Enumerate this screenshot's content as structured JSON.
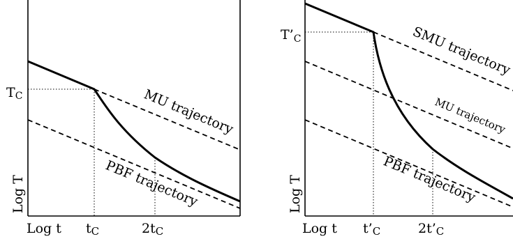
{
  "left_panel": {
    "y_axis_label": "Log T",
    "x_axis_label": "Log t",
    "tick_tc": "t",
    "tick_tc_sub": "C",
    "tick_2tc": "2t",
    "tick_2tc_sub": "C",
    "level_T": "T",
    "level_T_sub": "C",
    "mu_label": "MU trajectory",
    "pbf_label": "PBF trajectory"
  },
  "right_panel": {
    "y_axis_label": "Log T",
    "x_axis_label": "Log t",
    "tick_tc": "t’",
    "tick_tc_sub": "C",
    "tick_2tc": "2t’",
    "tick_2tc_sub": "C",
    "level_T": "T’",
    "level_T_sub": "C",
    "smu_label": "SMU trajectory",
    "mu_label": "MU trajectory",
    "pbf_label": "PBF trajectory"
  }
}
